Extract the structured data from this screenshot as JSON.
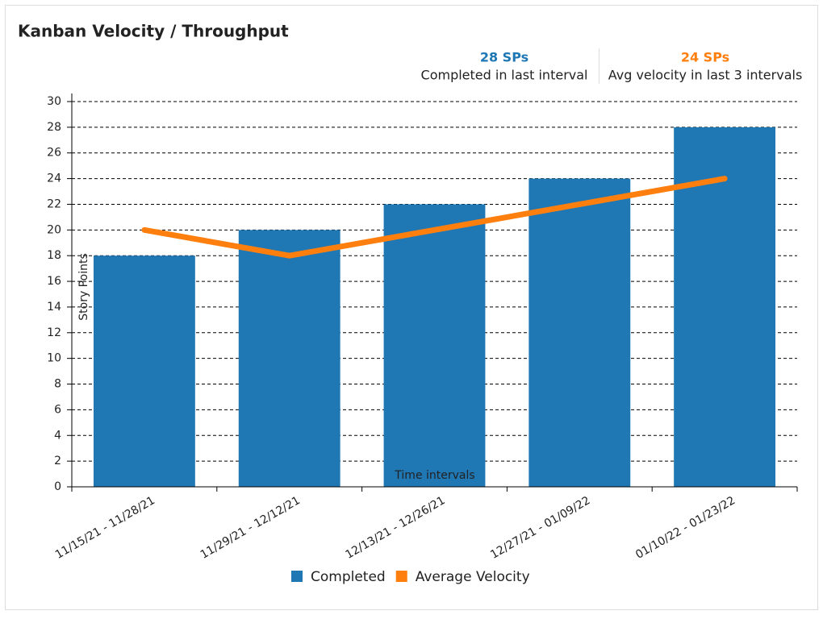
{
  "chart_data": {
    "type": "bar",
    "title": "Kanban Velocity / Throughput",
    "summary": [
      {
        "value": "28 SPs",
        "label": "Completed in last interval",
        "color": "#1f77b4"
      },
      {
        "value": "24 SPs",
        "label": "Avg velocity in last 3 intervals",
        "color": "#ff7f0e"
      }
    ],
    "categories": [
      "11/15/21 - 11/28/21",
      "11/29/21 - 12/12/21",
      "12/13/21 - 12/26/21",
      "12/27/21 - 01/09/22",
      "01/10/22 - 01/23/22"
    ],
    "series": [
      {
        "name": "Completed",
        "type": "bar",
        "color": "#1f77b4",
        "values": [
          18,
          20,
          22,
          24,
          28
        ]
      },
      {
        "name": "Average Velocity",
        "type": "line",
        "color": "#ff7f0e",
        "values": [
          20,
          18,
          20,
          22,
          24
        ]
      }
    ],
    "y_label": "Story Points",
    "x_label": "Time intervals",
    "ylim": [
      0,
      30
    ],
    "yticks": [
      0,
      2,
      4,
      6,
      8,
      10,
      12,
      14,
      16,
      18,
      20,
      22,
      24,
      26,
      28,
      30
    ],
    "grid": true
  }
}
